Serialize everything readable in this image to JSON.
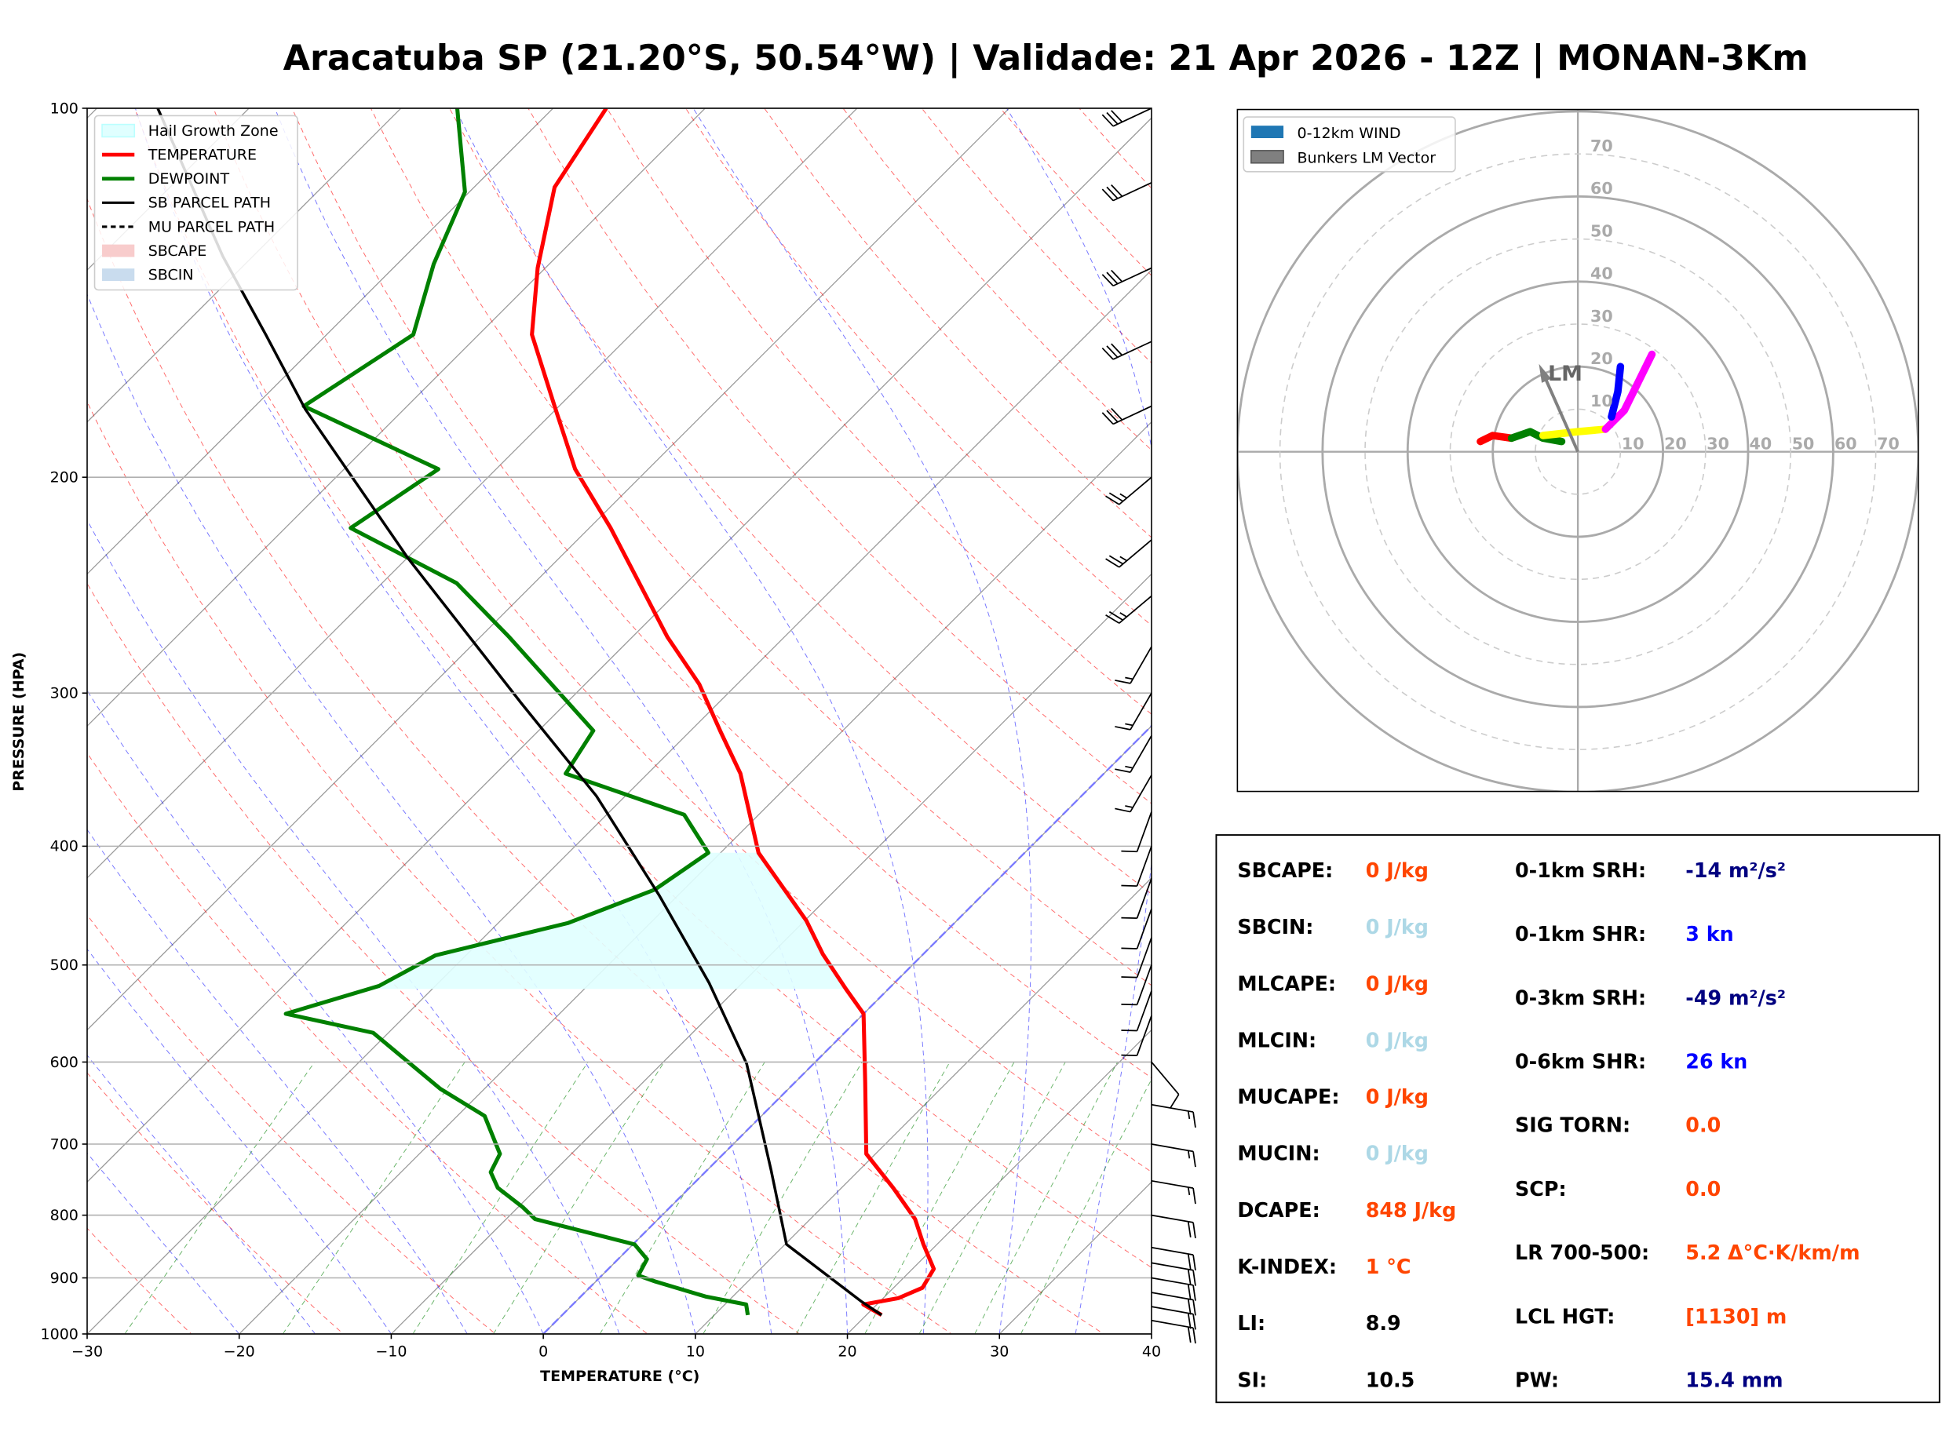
{
  "title": "Aracatuba SP (21.20°S, 50.54°W) | Validade: 21 Apr 2026 - 12Z | MONAN-3Km",
  "chart_data": [
    {
      "type": "skewt",
      "xlabel": "TEMPERATURE (°C)",
      "ylabel": "PRESSURE (HPA)",
      "xlim": [
        -30,
        40
      ],
      "ylim": [
        1000,
        100
      ],
      "log_y": true,
      "grid": true,
      "xticks": [
        {
          "value": -30,
          "label": "−30"
        },
        {
          "value": -20,
          "label": "−20"
        },
        {
          "value": -10,
          "label": "−10"
        },
        0,
        10,
        20,
        30,
        40
      ],
      "yticks": [
        1000,
        900,
        800,
        700,
        600,
        500,
        400,
        300,
        200,
        100
      ],
      "series": [
        {
          "name": "TEMPERATURE",
          "color": "#ff0000",
          "pressure": [
            965,
            946,
            935,
            917,
            885,
            845,
            806,
            760,
            713,
            623,
            548,
            523,
            490,
            460,
            405,
            349,
            323,
            295,
            270,
            220,
            197,
            175,
            153,
            135,
            116,
            100
          ],
          "values": [
            21.0,
            19.1,
            21.0,
            21.9,
            21.4,
            19.1,
            16.9,
            13.4,
            9.4,
            4.6,
            0.0,
            -2.8,
            -6.6,
            -9.9,
            -17.5,
            -23.9,
            -27.9,
            -32.5,
            -37.7,
            -48.6,
            -54.8,
            -60.3,
            -66.5,
            -70.5,
            -74.7,
            -76.5
          ]
        },
        {
          "name": "DEWPOINT",
          "color": "#008000",
          "pressure": [
            965,
            946,
            932,
            906,
            896,
            869,
            845,
            806,
            788,
            760,
            738,
            713,
            664,
            631,
            568,
            548,
            520,
            491,
            462,
            434,
            405,
            377,
            349,
            322,
            270,
            244,
            220,
            197,
            175,
            153,
            134,
            117,
            100
          ],
          "values": [
            12.2,
            11.4,
            8.2,
            3.9,
            2.4,
            1.9,
            0.1,
            -8.1,
            -9.7,
            -12.6,
            -14.1,
            -14.7,
            -18.2,
            -22.9,
            -31.0,
            -38.0,
            -33.7,
            -32.0,
            -25.4,
            -21.9,
            -20.8,
            -24.9,
            -35.4,
            -36.4,
            -48.1,
            -55.1,
            -65.7,
            -63.8,
            -76.8,
            -74.3,
            -77.6,
            -80.3,
            -86.3
          ]
        },
        {
          "name": "SB PARCEL PATH",
          "color": "#000000",
          "pressure": [
            965,
            941,
            845,
            735,
            602,
            517,
            439,
            364,
            306,
            233,
            176,
            153,
            132,
            100
          ],
          "values": [
            21.0,
            18.8,
            10.1,
            4.2,
            -4.4,
            -12.2,
            -21.2,
            -31.9,
            -42.9,
            -59.9,
            -76.5,
            -84.0,
            -92.0,
            -106.0
          ]
        },
        {
          "name": "MU PARCEL PATH",
          "color": "#000000",
          "dashed": true
        }
      ],
      "shading": [
        {
          "name": "Hail Growth Zone",
          "color": "#e0ffff",
          "pressure": [
            523,
            405
          ]
        },
        {
          "name": "SBCAPE",
          "color": "#f8cccc"
        },
        {
          "name": "SBCIN",
          "color": "#c9dcee"
        }
      ],
      "barbs": {
        "pressure": [
          100,
          115,
          135,
          155,
          175,
          200,
          225,
          250,
          275,
          300,
          325,
          350,
          375,
          400,
          425,
          450,
          475,
          500,
          525,
          550,
          600,
          650,
          700,
          750,
          800,
          850,
          875,
          900,
          925,
          950,
          975
        ],
        "speed": [
          30,
          30,
          30,
          30,
          30,
          25,
          25,
          25,
          15,
          15,
          15,
          15,
          10,
          10,
          10,
          10,
          10,
          10,
          10,
          10,
          10,
          15,
          15,
          15,
          20,
          20,
          20,
          20,
          20,
          20,
          20
        ],
        "direction": [
          245,
          245,
          245,
          245,
          245,
          230,
          230,
          230,
          210,
          210,
          210,
          210,
          200,
          200,
          200,
          200,
          200,
          200,
          200,
          200,
          140,
          100,
          100,
          100,
          100,
          100,
          100,
          100,
          100,
          100,
          100
        ]
      }
    },
    {
      "type": "hodograph",
      "lim": [
        -80,
        80
      ],
      "ticks": [
        10,
        20,
        30,
        40,
        50,
        60,
        70
      ],
      "wind": {
        "name": "0-12km WIND",
        "color": "#1f77b4",
        "segments": [
          {
            "color": "#ff0000",
            "u": [
              -22.9,
              -20.0,
              -15.6
            ],
            "v": [
              2.4,
              3.8,
              3.2
            ]
          },
          {
            "color": "#008000",
            "u": [
              -15.6,
              -11.2,
              -8.2,
              -3.8
            ],
            "v": [
              3.2,
              4.7,
              3.2,
              2.4
            ]
          },
          {
            "color": "#ffff00",
            "u": [
              -8.2,
              0.0,
              6.5
            ],
            "v": [
              3.8,
              4.7,
              5.3
            ]
          },
          {
            "color": "#ff00ff",
            "u": [
              6.5,
              10.9,
              13.8,
              17.4
            ],
            "v": [
              5.3,
              9.7,
              15.6,
              22.9
            ]
          },
          {
            "color": "#0000ff",
            "u": [
              7.9,
              9.4,
              10.0
            ],
            "v": [
              8.2,
              14.1,
              20.0
            ]
          }
        ]
      },
      "lm_vector": {
        "name": "Bunkers LM Vector",
        "label": "LM",
        "color": "#808080",
        "u": -8.2,
        "v": 18.5
      }
    }
  ],
  "indices": [
    [
      {
        "label": "SBCAPE:",
        "value": "0 J/kg",
        "color": "#ff4500"
      },
      {
        "label": "SBCIN:",
        "value": "0 J/kg",
        "color": "#add8e6"
      },
      {
        "label": "MLCAPE:",
        "value": "0 J/kg",
        "color": "#ff4500"
      },
      {
        "label": "MLCIN:",
        "value": "0 J/kg",
        "color": "#add8e6"
      },
      {
        "label": "MUCAPE:",
        "value": "0 J/kg",
        "color": "#ff4500"
      },
      {
        "label": "MUCIN:",
        "value": "0 J/kg",
        "color": "#add8e6"
      },
      {
        "label": "DCAPE:",
        "value": "848 J/kg",
        "color": "#ff4500"
      },
      {
        "label": "K-INDEX:",
        "value": "1 °C",
        "color": "#ff4500"
      },
      {
        "label": "LI:",
        "value": "8.9",
        "color": "#000000"
      },
      {
        "label": "SI:",
        "value": "10.5",
        "color": "#000000"
      }
    ],
    [
      {
        "label": "0-1km SRH:",
        "value": "-14 m²/s²",
        "color": "#000080"
      },
      {
        "label": "0-1km SHR:",
        "value": "3 kn",
        "color": "#0000ff"
      },
      {
        "label": "0-3km SRH:",
        "value": "-49 m²/s²",
        "color": "#000080"
      },
      {
        "label": "0-6km SHR:",
        "value": "26 kn",
        "color": "#0000ff"
      },
      {
        "label": "SIG TORN:",
        "value": "0.0",
        "color": "#ff4500"
      },
      {
        "label": "SCP:",
        "value": "0.0",
        "color": "#ff4500"
      },
      {
        "label": "LR 700-500:",
        "value": "5.2 Δ°C·K/km/m",
        "color": "#ff4500"
      },
      {
        "label": "LCL HGT:",
        "value": "[1130] m",
        "color": "#ff4500"
      },
      {
        "label": "PW:",
        "value": "15.4 mm",
        "color": "#000080"
      }
    ]
  ]
}
